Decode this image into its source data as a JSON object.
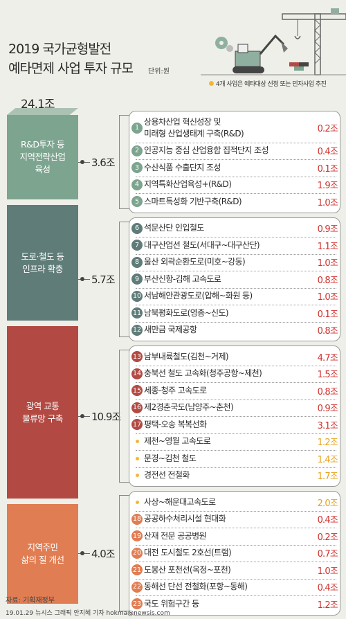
{
  "header": {
    "title_line1": "2019 국가균형발전",
    "title_line2": "예타면제 사업 투자 규모",
    "unit": "단위:원",
    "note": "4개 사업은 예타대상 선정 또는 민자사업 추진"
  },
  "colors": {
    "green": "#7da48f",
    "teal": "#5f7c78",
    "red": "#b24a43",
    "orange": "#e07d52",
    "value_red": "#d0312d",
    "value_yellow": "#e5a21c",
    "bullet_yellow": "#f2b830"
  },
  "chart_data": {
    "type": "table",
    "total": "24.1조",
    "categories": [
      {
        "label": "R&D투자 등\n지역전략산업\n육성",
        "amount": "3.6조",
        "value": 3.6,
        "color": "#7da48f",
        "items": [
          {
            "no": "1",
            "name": "상용차산업 혁신성장 및\n미래형 산업생태계 구축(R&D)",
            "value": "0.2조",
            "style": "red"
          },
          {
            "no": "2",
            "name": "인공지능 중심 산업융합 집적단지 조성",
            "value": "0.4조",
            "style": "red"
          },
          {
            "no": "3",
            "name": "수산식품 수출단지 조성",
            "value": "0.1조",
            "style": "red"
          },
          {
            "no": "4",
            "name": "지역특화산업육성+(R&D)",
            "value": "1.9조",
            "style": "red"
          },
          {
            "no": "5",
            "name": "스마트특성화 기반구축(R&D)",
            "value": "1.0조",
            "style": "red"
          }
        ]
      },
      {
        "label": "도로·철도 등\n인프라 확충",
        "amount": "5.7조",
        "value": 5.7,
        "color": "#5f7c78",
        "items": [
          {
            "no": "6",
            "name": "석문산단 인입철도",
            "value": "0.9조",
            "style": "red"
          },
          {
            "no": "7",
            "name": "대구산업선 철도(서대구~대구산단)",
            "value": "1.1조",
            "style": "red"
          },
          {
            "no": "8",
            "name": "울산 외곽순환도로(미호~강동)",
            "value": "1.0조",
            "style": "red"
          },
          {
            "no": "9",
            "name": "부산신항-김해 고속도로",
            "value": "0.8조",
            "style": "red"
          },
          {
            "no": "10",
            "name": "서남해안관광도로(압해~화원 등)",
            "value": "1.0조",
            "style": "red"
          },
          {
            "no": "11",
            "name": "남북평화도로(영종~신도)",
            "value": "0.1조",
            "style": "red"
          },
          {
            "no": "12",
            "name": "새만금 국제공항",
            "value": "0.8조",
            "style": "red"
          }
        ]
      },
      {
        "label": "광역 교통\n물류망 구축",
        "amount": "10.9조",
        "value": 10.9,
        "color": "#b24a43",
        "items": [
          {
            "no": "13",
            "name": "남부내륙철도(김천~거제)",
            "value": "4.7조",
            "style": "red"
          },
          {
            "no": "14",
            "name": "충북선 철도 고속화(청주공항~제천)",
            "value": "1.5조",
            "style": "red"
          },
          {
            "no": "15",
            "name": "세종-청주 고속도로",
            "value": "0.8조",
            "style": "red"
          },
          {
            "no": "16",
            "name": "제2경춘국도(남양주~춘천)",
            "value": "0.9조",
            "style": "red"
          },
          {
            "no": "17",
            "name": "평택-오송 복복선화",
            "value": "3.1조",
            "style": "red"
          },
          {
            "no": "",
            "name": "제천~영월 고속도로",
            "value": "1.2조",
            "style": "yellow"
          },
          {
            "no": "",
            "name": "문경~김천 철도",
            "value": "1.4조",
            "style": "yellow"
          },
          {
            "no": "",
            "name": "경전선 전철화",
            "value": "1.7조",
            "style": "yellow"
          }
        ]
      },
      {
        "label": "지역주민\n삶의 질 개선",
        "amount": "4.0조",
        "value": 4.0,
        "color": "#e07d52",
        "items": [
          {
            "no": "",
            "name": "사상~해운대고속도로",
            "value": "2.0조",
            "style": "yellow"
          },
          {
            "no": "18",
            "name": "공공하수처리시설 현대화",
            "value": "0.4조",
            "style": "red"
          },
          {
            "no": "19",
            "name": "산재 전문 공공병원",
            "value": "0.2조",
            "style": "red"
          },
          {
            "no": "20",
            "name": "대전 도시철도 2호선(트램)",
            "value": "0.7조",
            "style": "red"
          },
          {
            "no": "21",
            "name": "도봉산 포천선(옥정~포천)",
            "value": "1.0조",
            "style": "red"
          },
          {
            "no": "22",
            "name": "동해선 단선 전철화(포항~동해)",
            "value": "0.4조",
            "style": "red"
          },
          {
            "no": "23",
            "name": "국도 위험구간 등",
            "value": "1.2조",
            "style": "red"
          }
        ]
      }
    ]
  },
  "footer": {
    "source": "자료: 기획재정부",
    "credit": "19.01.29 뉴시스 그래픽 안지혜 기자 hokma@newsis.com"
  }
}
